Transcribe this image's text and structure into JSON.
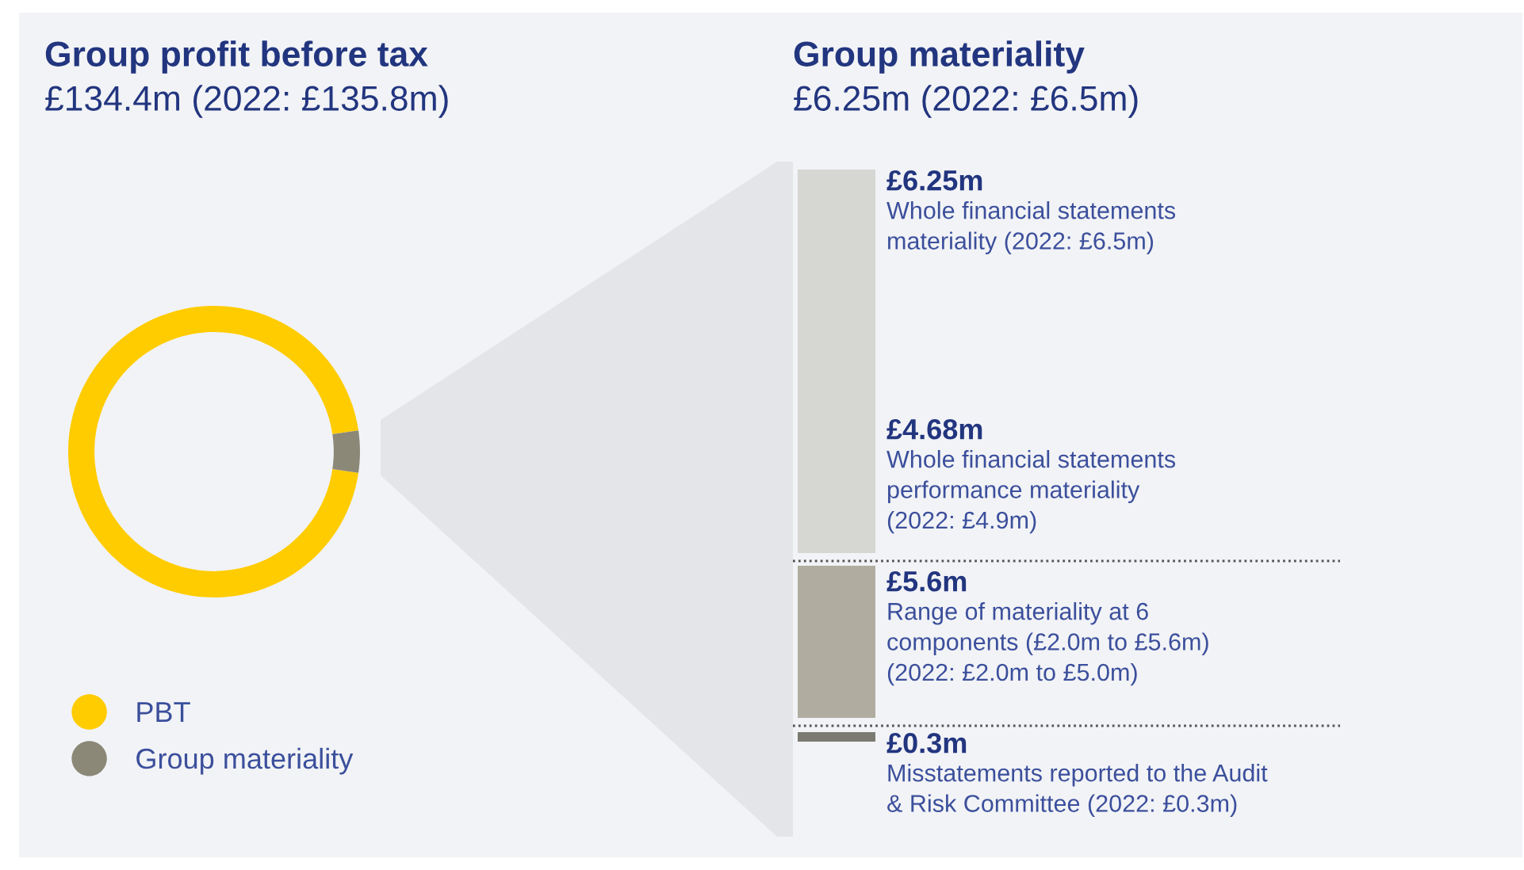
{
  "chart_data": [
    {
      "type": "donut",
      "title": "Group profit before tax",
      "subtitle": "£134.4m (2022: £135.8m)",
      "categories": [
        "PBT",
        "Group materiality"
      ],
      "values": [
        95.35,
        4.65
      ],
      "colors": [
        "#ffcc00",
        "#8c8878"
      ],
      "legend": "bottom left"
    },
    {
      "type": "other",
      "title": "Group materiality",
      "subtitle": "£6.25m (2022: £6.5m)",
      "categories": [
        "Whole financial statements\nmateriality (2022: £6.5m)",
        "Whole financial statements\nperformance materiality\n(2022: £4.9m)",
        "Range of materiality at 6\ncomponents (£2.0m to £5.6m)\n(2022: £2.0m to £5.0m)",
        "Misstatements reported to the Audit\n& Risk Committee (2022: £0.3m)"
      ],
      "value_labels": [
        "£6.25m",
        "£4.68m",
        "£5.6m",
        "£0.3m"
      ],
      "colors": [
        "#d6d6d3",
        "#d6d6d3",
        "#b0ada0",
        "#7c7b72"
      ]
    }
  ]
}
